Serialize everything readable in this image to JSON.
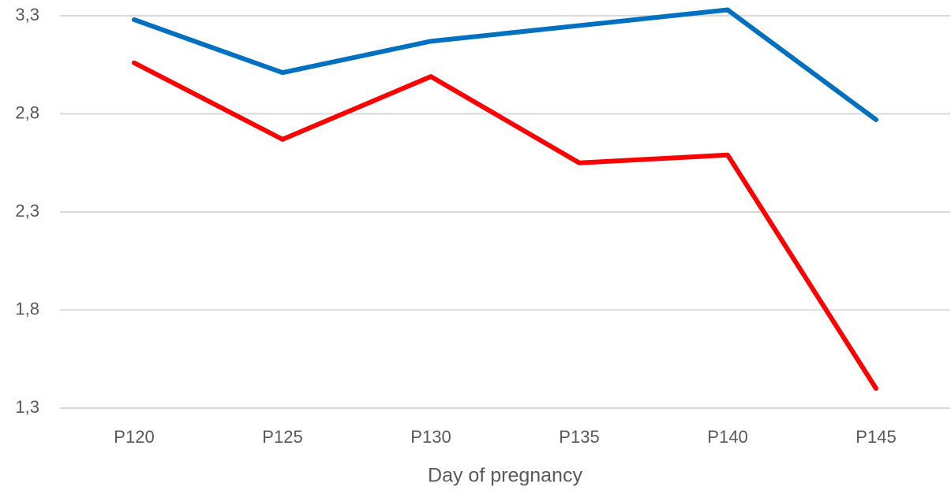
{
  "chart_data": {
    "type": "line",
    "x_label": "Day of pregnancy",
    "categories": [
      "P120",
      "P125",
      "P130",
      "P135",
      "P140",
      "P145"
    ],
    "series": [
      {
        "color": "#0070c0",
        "values": [
          3.28,
          3.01,
          3.17,
          3.25,
          3.33,
          2.77
        ]
      },
      {
        "color": "#ff0000",
        "values": [
          3.06,
          2.67,
          2.99,
          2.55,
          2.59,
          1.4
        ]
      }
    ],
    "ylim": [
      1.3,
      3.3
    ],
    "yticks": [
      {
        "value": 1.3,
        "label": "1,3"
      },
      {
        "value": 1.8,
        "label": "1,8"
      },
      {
        "value": 2.3,
        "label": "2,3"
      },
      {
        "value": 2.8,
        "label": "2,8"
      },
      {
        "value": 3.3,
        "label": "3,3"
      }
    ],
    "grid": true
  }
}
